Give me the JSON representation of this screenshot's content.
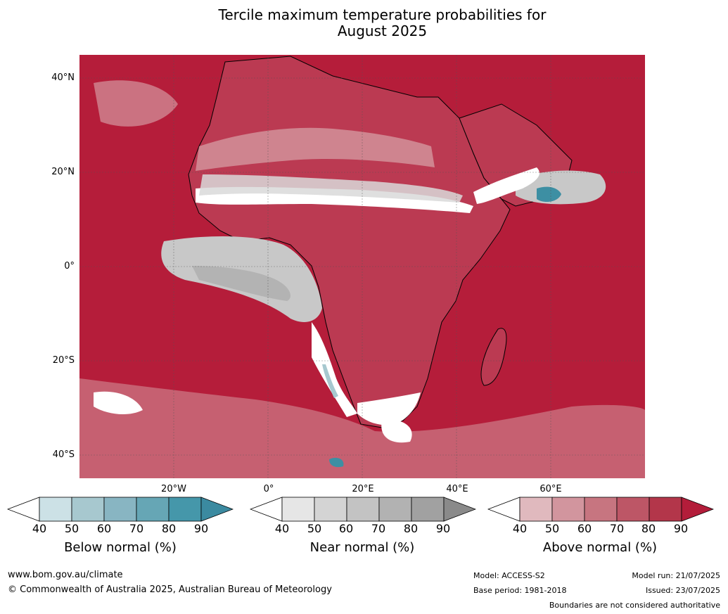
{
  "title": {
    "line1": "Tercile maximum temperature probabilities for",
    "line2": "August 2025"
  },
  "map": {
    "region": "Africa",
    "latitude_labels": [
      "40°N",
      "20°N",
      "0°",
      "20°S",
      "40°S"
    ],
    "longitude_labels": [
      "20°W",
      "0°",
      "20°E",
      "40°E",
      "60°E"
    ],
    "colors": {
      "above_90": "#b51d3a",
      "above_80": "#c0475b",
      "above_70": "#cb7280",
      "above_60": "#d4979f",
      "above_50": "#e1b9bd",
      "near_60": "#c8c8c8",
      "near_70": "#b3b3b3",
      "near_50": "#d9d9d9",
      "neutral": "#ffffff",
      "below_50": "#a7c8cf",
      "below_80": "#3d8fa3"
    }
  },
  "legends": {
    "below": {
      "label": "Below normal (%)",
      "ticks": [
        "40",
        "50",
        "60",
        "70",
        "80",
        "90"
      ],
      "colors": [
        "#ffffff",
        "#cce1e6",
        "#a7c8cf",
        "#88b5c2",
        "#66a6b5",
        "#4597aa",
        "#3b8aa0"
      ]
    },
    "near": {
      "label": "Near normal (%)",
      "ticks": [
        "40",
        "50",
        "60",
        "70",
        "80",
        "90"
      ],
      "colors": [
        "#ffffff",
        "#e6e6e6",
        "#d4d4d4",
        "#c3c3c3",
        "#b2b2b2",
        "#a1a1a1",
        "#8a8a8a"
      ]
    },
    "above": {
      "label": "Above normal (%)",
      "ticks": [
        "40",
        "50",
        "60",
        "70",
        "80",
        "90"
      ],
      "colors": [
        "#ffffff",
        "#e0b9be",
        "#d2959e",
        "#c77580",
        "#bd5666",
        "#b3364a",
        "#b31d3a"
      ]
    }
  },
  "footer": {
    "website": "www.bom.gov.au/climate",
    "copyright": "© Commonwealth of Australia 2025, Australian Bureau of Meteorology",
    "model": "Model: ACCESS-S2",
    "base_period": "Base period: 1981-2018",
    "model_run": "Model run: 21/07/2025",
    "issued": "Issued: 23/07/2025",
    "disclaimer": "Boundaries are not considered authoritative"
  }
}
